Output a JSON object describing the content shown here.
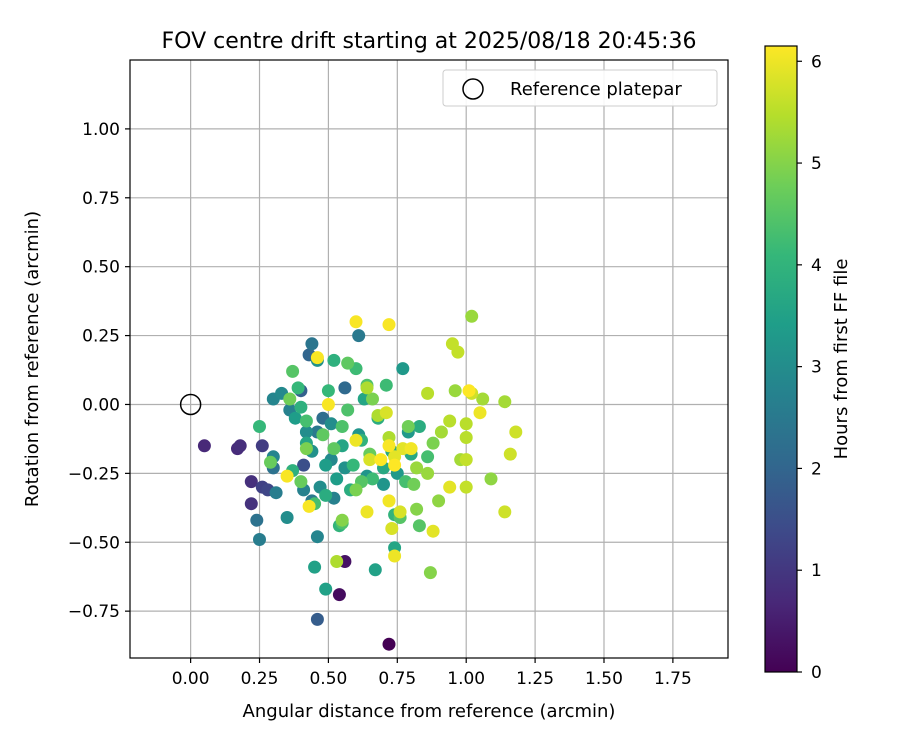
{
  "chart_data": {
    "type": "scatter",
    "title": "FOV centre drift starting at 2025/08/18 20:45:36",
    "xlabel": "Angular distance from reference (arcmin)",
    "ylabel": "Rotation from reference (arcmin)",
    "xlim": [
      -0.22,
      1.95
    ],
    "ylim": [
      -0.92,
      1.25
    ],
    "xticks": [
      0.0,
      0.25,
      0.5,
      0.75,
      1.0,
      1.25,
      1.5,
      1.75
    ],
    "yticks": [
      -0.75,
      -0.5,
      -0.25,
      0.0,
      0.25,
      0.5,
      0.75,
      1.0
    ],
    "xticklabels": [
      "0.00",
      "0.25",
      "0.50",
      "0.75",
      "1.00",
      "1.25",
      "1.50",
      "1.75"
    ],
    "yticklabels": [
      "−0.75",
      "−0.50",
      "−0.25",
      "0.00",
      "0.25",
      "0.50",
      "0.75",
      "1.00"
    ],
    "grid": true,
    "legend": {
      "placement": "top-right",
      "entries": [
        "Reference platepar"
      ]
    },
    "reference_point": {
      "x": 0.0,
      "y": 0.0
    },
    "colorbar": {
      "label": "Hours from first FF file",
      "range": [
        0,
        6.15
      ],
      "ticks": [
        0,
        1,
        2,
        3,
        4,
        5,
        6
      ],
      "ticklabels": [
        "0",
        "1",
        "2",
        "3",
        "4",
        "5",
        "6"
      ],
      "colormap": "viridis",
      "colormap_stops": [
        "#440154",
        "#482878",
        "#3e4989",
        "#31688e",
        "#26828e",
        "#1f9e89",
        "#35b779",
        "#6ece58",
        "#b5de2b",
        "#fde725"
      ]
    },
    "points": [
      {
        "x": 0.72,
        "y": -0.87,
        "hours": 0.0
      },
      {
        "x": 0.54,
        "y": -0.69,
        "hours": 0.2
      },
      {
        "x": 0.56,
        "y": -0.57,
        "hours": 0.3
      },
      {
        "x": 0.05,
        "y": -0.15,
        "hours": 0.7
      },
      {
        "x": 0.17,
        "y": -0.16,
        "hours": 0.75
      },
      {
        "x": 0.18,
        "y": -0.15,
        "hours": 0.8
      },
      {
        "x": 0.22,
        "y": -0.28,
        "hours": 0.85
      },
      {
        "x": 0.22,
        "y": -0.36,
        "hours": 0.9
      },
      {
        "x": 0.26,
        "y": -0.15,
        "hours": 1.1
      },
      {
        "x": 0.26,
        "y": -0.3,
        "hours": 1.2
      },
      {
        "x": 0.28,
        "y": -0.31,
        "hours": 1.3
      },
      {
        "x": 0.41,
        "y": -0.22,
        "hours": 1.5
      },
      {
        "x": 0.46,
        "y": -0.78,
        "hours": 1.8
      },
      {
        "x": 0.4,
        "y": 0.05,
        "hours": 1.9
      },
      {
        "x": 0.43,
        "y": 0.18,
        "hours": 2.0
      },
      {
        "x": 0.56,
        "y": 0.06,
        "hours": 2.1
      },
      {
        "x": 0.48,
        "y": -0.05,
        "hours": 2.2
      },
      {
        "x": 0.3,
        "y": -0.23,
        "hours": 2.3
      },
      {
        "x": 0.24,
        "y": -0.42,
        "hours": 2.3
      },
      {
        "x": 0.44,
        "y": 0.22,
        "hours": 2.4
      },
      {
        "x": 0.61,
        "y": 0.25,
        "hours": 2.5
      },
      {
        "x": 0.46,
        "y": -0.1,
        "hours": 2.5
      },
      {
        "x": 0.44,
        "y": -0.35,
        "hours": 2.5
      },
      {
        "x": 0.31,
        "y": -0.32,
        "hours": 2.6
      },
      {
        "x": 0.25,
        "y": -0.49,
        "hours": 2.6
      },
      {
        "x": 0.36,
        "y": -0.02,
        "hours": 2.7
      },
      {
        "x": 0.41,
        "y": -0.31,
        "hours": 2.7
      },
      {
        "x": 0.52,
        "y": -0.34,
        "hours": 2.7
      },
      {
        "x": 0.46,
        "y": -0.48,
        "hours": 2.8
      },
      {
        "x": 0.3,
        "y": -0.19,
        "hours": 2.8
      },
      {
        "x": 0.3,
        "y": 0.02,
        "hours": 2.8
      },
      {
        "x": 0.33,
        "y": 0.04,
        "hours": 2.9
      },
      {
        "x": 0.51,
        "y": -0.2,
        "hours": 2.9
      },
      {
        "x": 0.51,
        "y": -0.07,
        "hours": 3.0
      },
      {
        "x": 0.47,
        "y": -0.3,
        "hours": 3.0
      },
      {
        "x": 0.35,
        "y": -0.41,
        "hours": 3.0
      },
      {
        "x": 0.42,
        "y": -0.1,
        "hours": 3.0
      },
      {
        "x": 0.44,
        "y": -0.17,
        "hours": 3.1
      },
      {
        "x": 0.46,
        "y": 0.16,
        "hours": 3.1
      },
      {
        "x": 0.56,
        "y": -0.23,
        "hours": 3.1
      },
      {
        "x": 0.61,
        "y": -0.11,
        "hours": 3.2
      },
      {
        "x": 0.64,
        "y": -0.26,
        "hours": 3.2
      },
      {
        "x": 0.7,
        "y": -0.29,
        "hours": 3.2
      },
      {
        "x": 0.77,
        "y": 0.13,
        "hours": 3.3
      },
      {
        "x": 0.79,
        "y": -0.1,
        "hours": 3.3
      },
      {
        "x": 0.75,
        "y": -0.25,
        "hours": 3.3
      },
      {
        "x": 0.38,
        "y": -0.05,
        "hours": 3.4
      },
      {
        "x": 0.49,
        "y": -0.22,
        "hours": 3.4
      },
      {
        "x": 0.53,
        "y": -0.27,
        "hours": 3.4
      },
      {
        "x": 0.45,
        "y": -0.59,
        "hours": 3.5
      },
      {
        "x": 0.49,
        "y": -0.67,
        "hours": 3.5
      },
      {
        "x": 0.67,
        "y": -0.6,
        "hours": 3.5
      },
      {
        "x": 0.74,
        "y": -0.52,
        "hours": 3.6
      },
      {
        "x": 0.42,
        "y": -0.14,
        "hours": 3.6
      },
      {
        "x": 0.55,
        "y": -0.15,
        "hours": 3.6
      },
      {
        "x": 0.63,
        "y": 0.02,
        "hours": 3.6
      },
      {
        "x": 0.7,
        "y": -0.23,
        "hours": 3.7
      },
      {
        "x": 0.73,
        "y": -0.17,
        "hours": 3.7
      },
      {
        "x": 0.8,
        "y": -0.18,
        "hours": 3.7
      },
      {
        "x": 0.83,
        "y": -0.08,
        "hours": 3.8
      },
      {
        "x": 0.68,
        "y": -0.05,
        "hours": 3.8
      },
      {
        "x": 0.58,
        "y": -0.31,
        "hours": 3.8
      },
      {
        "x": 0.49,
        "y": -0.33,
        "hours": 3.8
      },
      {
        "x": 0.37,
        "y": -0.24,
        "hours": 3.9
      },
      {
        "x": 0.4,
        "y": -0.01,
        "hours": 3.9
      },
      {
        "x": 0.52,
        "y": 0.16,
        "hours": 3.9
      },
      {
        "x": 0.54,
        "y": -0.44,
        "hours": 4.0
      },
      {
        "x": 0.62,
        "y": -0.13,
        "hours": 4.0
      },
      {
        "x": 0.74,
        "y": -0.4,
        "hours": 4.0
      },
      {
        "x": 0.25,
        "y": -0.08,
        "hours": 4.1
      },
      {
        "x": 0.39,
        "y": 0.06,
        "hours": 4.1
      },
      {
        "x": 0.5,
        "y": 0.05,
        "hours": 4.1
      },
      {
        "x": 0.59,
        "y": -0.22,
        "hours": 4.1
      },
      {
        "x": 0.6,
        "y": 0.13,
        "hours": 4.2
      },
      {
        "x": 0.66,
        "y": -0.27,
        "hours": 4.2
      },
      {
        "x": 0.71,
        "y": 0.07,
        "hours": 4.2
      },
      {
        "x": 0.78,
        "y": -0.28,
        "hours": 4.3
      },
      {
        "x": 0.86,
        "y": -0.19,
        "hours": 4.3
      },
      {
        "x": 0.42,
        "y": -0.06,
        "hours": 4.3
      },
      {
        "x": 0.45,
        "y": -0.36,
        "hours": 4.3
      },
      {
        "x": 0.55,
        "y": -0.08,
        "hours": 4.4
      },
      {
        "x": 0.57,
        "y": -0.02,
        "hours": 4.4
      },
      {
        "x": 0.64,
        "y": 0.07,
        "hours": 4.4
      },
      {
        "x": 0.55,
        "y": -0.43,
        "hours": 4.4
      },
      {
        "x": 0.76,
        "y": -0.41,
        "hours": 4.5
      },
      {
        "x": 0.83,
        "y": -0.44,
        "hours": 4.5
      },
      {
        "x": 0.62,
        "y": -0.28,
        "hours": 4.5
      },
      {
        "x": 0.37,
        "y": 0.12,
        "hours": 4.5
      },
      {
        "x": 0.48,
        "y": -0.11,
        "hours": 4.6
      },
      {
        "x": 0.52,
        "y": -0.16,
        "hours": 4.6
      },
      {
        "x": 0.57,
        "y": 0.15,
        "hours": 4.6
      },
      {
        "x": 0.65,
        "y": -0.18,
        "hours": 4.7
      },
      {
        "x": 0.4,
        "y": -0.28,
        "hours": 4.7
      },
      {
        "x": 0.29,
        "y": -0.21,
        "hours": 4.7
      },
      {
        "x": 0.36,
        "y": 0.02,
        "hours": 4.8
      },
      {
        "x": 0.79,
        "y": -0.08,
        "hours": 4.8
      },
      {
        "x": 0.81,
        "y": -0.29,
        "hours": 4.8
      },
      {
        "x": 0.88,
        "y": -0.14,
        "hours": 4.9
      },
      {
        "x": 0.66,
        "y": 0.02,
        "hours": 4.9
      },
      {
        "x": 0.6,
        "y": -0.31,
        "hours": 4.9
      },
      {
        "x": 0.42,
        "y": -0.16,
        "hours": 4.9
      },
      {
        "x": 0.55,
        "y": -0.42,
        "hours": 5.0
      },
      {
        "x": 0.87,
        "y": -0.61,
        "hours": 5.0
      },
      {
        "x": 0.82,
        "y": -0.38,
        "hours": 5.0
      },
      {
        "x": 0.9,
        "y": -0.35,
        "hours": 5.1
      },
      {
        "x": 1.09,
        "y": -0.27,
        "hours": 5.1
      },
      {
        "x": 1.02,
        "y": 0.32,
        "hours": 5.2
      },
      {
        "x": 0.96,
        "y": 0.05,
        "hours": 5.2
      },
      {
        "x": 0.86,
        "y": -0.25,
        "hours": 5.2
      },
      {
        "x": 0.82,
        "y": -0.23,
        "hours": 5.2
      },
      {
        "x": 1.14,
        "y": 0.01,
        "hours": 5.3
      },
      {
        "x": 1.06,
        "y": 0.02,
        "hours": 5.3
      },
      {
        "x": 0.98,
        "y": -0.2,
        "hours": 5.3
      },
      {
        "x": 0.91,
        "y": -0.1,
        "hours": 5.3
      },
      {
        "x": 0.64,
        "y": 0.06,
        "hours": 5.4
      },
      {
        "x": 0.68,
        "y": -0.04,
        "hours": 5.4
      },
      {
        "x": 0.72,
        "y": -0.12,
        "hours": 5.4
      },
      {
        "x": 0.53,
        "y": -0.57,
        "hours": 5.4
      },
      {
        "x": 0.86,
        "y": 0.04,
        "hours": 5.5
      },
      {
        "x": 0.94,
        "y": -0.06,
        "hours": 5.5
      },
      {
        "x": 1.0,
        "y": -0.07,
        "hours": 5.5
      },
      {
        "x": 1.0,
        "y": -0.12,
        "hours": 5.5
      },
      {
        "x": 1.0,
        "y": -0.2,
        "hours": 5.6
      },
      {
        "x": 1.0,
        "y": -0.3,
        "hours": 5.6
      },
      {
        "x": 0.97,
        "y": 0.19,
        "hours": 5.6
      },
      {
        "x": 0.95,
        "y": 0.22,
        "hours": 5.6
      },
      {
        "x": 1.18,
        "y": -0.1,
        "hours": 5.7
      },
      {
        "x": 1.16,
        "y": -0.18,
        "hours": 5.7
      },
      {
        "x": 1.14,
        "y": -0.39,
        "hours": 5.7
      },
      {
        "x": 1.02,
        "y": 0.04,
        "hours": 5.7
      },
      {
        "x": 0.76,
        "y": -0.39,
        "hours": 5.8
      },
      {
        "x": 0.73,
        "y": -0.45,
        "hours": 5.8
      },
      {
        "x": 0.65,
        "y": -0.2,
        "hours": 5.8
      },
      {
        "x": 0.71,
        "y": -0.03,
        "hours": 5.8
      },
      {
        "x": 0.77,
        "y": -0.16,
        "hours": 5.9
      },
      {
        "x": 0.74,
        "y": -0.19,
        "hours": 5.9
      },
      {
        "x": 0.88,
        "y": -0.46,
        "hours": 5.9
      },
      {
        "x": 0.94,
        "y": -0.3,
        "hours": 5.9
      },
      {
        "x": 0.74,
        "y": -0.55,
        "hours": 6.0
      },
      {
        "x": 0.64,
        "y": -0.39,
        "hours": 6.0
      },
      {
        "x": 1.05,
        "y": -0.03,
        "hours": 6.0
      },
      {
        "x": 0.6,
        "y": -0.13,
        "hours": 6.0
      },
      {
        "x": 0.8,
        "y": -0.16,
        "hours": 6.05
      },
      {
        "x": 0.72,
        "y": -0.35,
        "hours": 6.05
      },
      {
        "x": 0.72,
        "y": 0.29,
        "hours": 6.1
      },
      {
        "x": 0.6,
        "y": 0.3,
        "hours": 6.1
      },
      {
        "x": 0.46,
        "y": 0.17,
        "hours": 6.1
      },
      {
        "x": 0.5,
        "y": 0.0,
        "hours": 6.1
      },
      {
        "x": 0.43,
        "y": -0.37,
        "hours": 6.1
      },
      {
        "x": 0.35,
        "y": -0.26,
        "hours": 6.1
      },
      {
        "x": 0.72,
        "y": -0.15,
        "hours": 6.1
      },
      {
        "x": 0.74,
        "y": -0.22,
        "hours": 6.15
      },
      {
        "x": 0.69,
        "y": -0.2,
        "hours": 6.15
      },
      {
        "x": 1.01,
        "y": 0.05,
        "hours": 6.15
      }
    ]
  }
}
